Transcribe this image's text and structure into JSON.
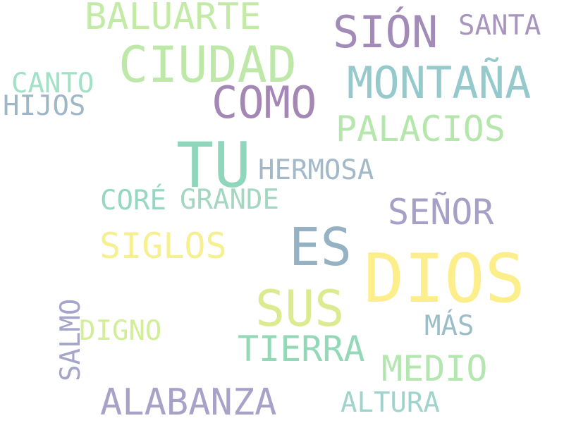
{
  "words": [
    {
      "id": "dios",
      "text": "DIOS",
      "color": "#FDEE8C"
    },
    {
      "id": "tu",
      "text": "TU",
      "color": "#8FD6BC"
    },
    {
      "id": "es",
      "text": "ES",
      "color": "#94B2C3"
    },
    {
      "id": "ciudad",
      "text": "CIUDAD",
      "color": "#BEE8A8"
    },
    {
      "id": "sus",
      "text": "SUS",
      "color": "#DCEB90"
    },
    {
      "id": "como",
      "text": "COMO",
      "color": "#A487B4"
    },
    {
      "id": "montana",
      "text": "MONTAÑA",
      "color": "#95C9CC"
    },
    {
      "id": "sion",
      "text": "SIÓN",
      "color": "#A38BB7"
    },
    {
      "id": "alabanza",
      "text": "ALABANZA",
      "color": "#A8A2C8"
    },
    {
      "id": "baluarte",
      "text": "BALUARTE",
      "color": "#C4EAA8"
    },
    {
      "id": "palacios",
      "text": "PALACIOS",
      "color": "#B5E7AD"
    },
    {
      "id": "tierra",
      "text": "TIERRA",
      "color": "#93D8B7"
    },
    {
      "id": "medio",
      "text": "MEDIO",
      "color": "#B4E6B0"
    },
    {
      "id": "senor",
      "text": "SEÑOR",
      "color": "#A7A0C6"
    },
    {
      "id": "siglos",
      "text": "SIGLOS",
      "color": "#F6F090"
    },
    {
      "id": "hermosa",
      "text": "HERMOSA",
      "color": "#A3B8C8"
    },
    {
      "id": "santa",
      "text": "SANTA",
      "color": "#A895BE"
    },
    {
      "id": "grande",
      "text": "GRANDE",
      "color": "#A4D7C1"
    },
    {
      "id": "core",
      "text": "CORÉ",
      "color": "#94D8C1"
    },
    {
      "id": "canto",
      "text": "CANTO",
      "color": "#A2E1C8"
    },
    {
      "id": "hijos",
      "text": "HIJOS",
      "color": "#9FB6C7"
    },
    {
      "id": "altura",
      "text": "ALTURA",
      "color": "#9FD3CB"
    },
    {
      "id": "digno",
      "text": "DIGNO",
      "color": "#D2EE99"
    },
    {
      "id": "mas",
      "text": "MÁS",
      "color": "#9CBDC6"
    },
    {
      "id": "salmo",
      "text": "SALMO",
      "color": "#A5A5C9"
    }
  ]
}
